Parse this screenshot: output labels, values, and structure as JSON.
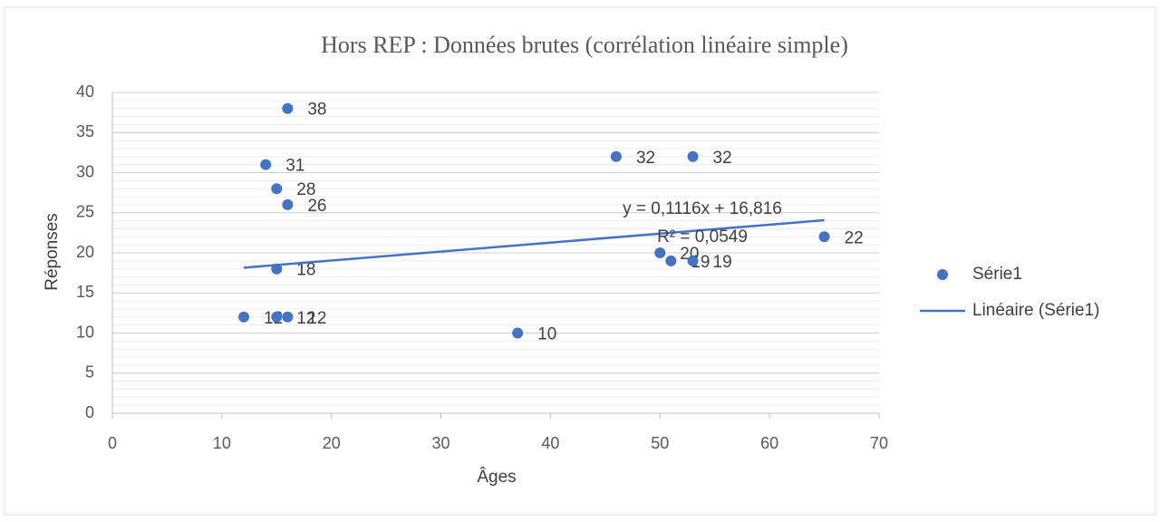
{
  "chart_data": {
    "type": "scatter",
    "title": "Hors REP : Données brutes (corrélation linéaire simple)",
    "x_label": "Âges",
    "y_label": "Réponses",
    "series": [
      {
        "name": "Série1",
        "color": "#4472c4",
        "x": [
          16,
          14,
          15,
          16,
          15,
          12,
          15,
          16,
          46,
          53,
          50,
          51,
          53,
          37,
          65
        ],
        "values": [
          38,
          31,
          28,
          26,
          18,
          12,
          12,
          12,
          32,
          32,
          20,
          19,
          19,
          10,
          22
        ]
      },
      {
        "name": "Linéaire (Série1)",
        "color": "#4472c4",
        "kind": "trendline",
        "x": [
          12,
          65
        ],
        "values": [
          18.15,
          24.07
        ]
      }
    ],
    "annotations": [
      "y = 0,1116x + 16,816",
      "R² = 0,0549"
    ],
    "xlim": [
      0,
      70
    ],
    "xticks": [
      0,
      10,
      20,
      30,
      40,
      50,
      60,
      70
    ],
    "ylim": [
      0,
      40
    ],
    "yticks": [
      0,
      5,
      10,
      15,
      20,
      25,
      30,
      35,
      40
    ],
    "grid": true,
    "minor_grid_step": 1,
    "legend": "right"
  }
}
